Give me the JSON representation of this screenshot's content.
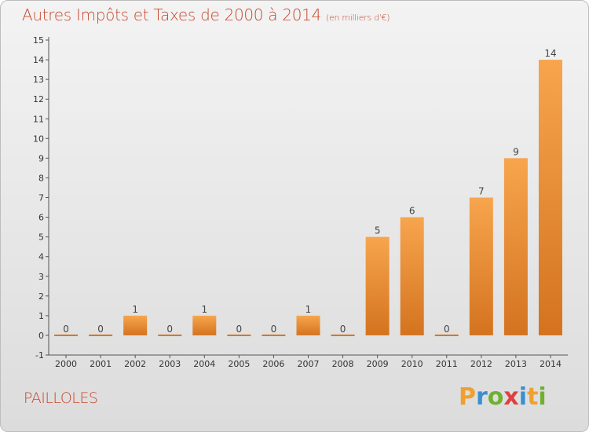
{
  "header": {
    "title": "Autres Impôts et Taxes de 2000 à 2014",
    "unit": "(en milliers d'€)"
  },
  "footer": {
    "place": "PAILLOLES",
    "logo_text": "Proxiti",
    "logo_colors": [
      "#f0a030",
      "#3a8fd0",
      "#70b030",
      "#e04040",
      "#3a8fd0",
      "#f0a030",
      "#70b030"
    ]
  },
  "colors": {
    "bar_light": "#f7a54e",
    "bar_dark": "#d4731f",
    "text": "#c8472e"
  },
  "chart_data": {
    "type": "bar",
    "title": "Autres Impôts et Taxes de 2000 à 2014",
    "subtitle": "(en milliers d'€)",
    "categories": [
      "2000",
      "2001",
      "2002",
      "2003",
      "2004",
      "2005",
      "2006",
      "2007",
      "2008",
      "2009",
      "2010",
      "2011",
      "2012",
      "2013",
      "2014"
    ],
    "values": [
      0,
      0,
      1,
      0,
      1,
      0,
      0,
      1,
      0,
      5,
      6,
      0,
      7,
      9,
      14
    ],
    "ylim": [
      -1,
      15
    ],
    "yticks": [
      -1,
      0,
      1,
      2,
      3,
      4,
      5,
      6,
      7,
      8,
      9,
      10,
      11,
      12,
      13,
      14,
      15
    ],
    "grid": false,
    "legend": "none"
  }
}
